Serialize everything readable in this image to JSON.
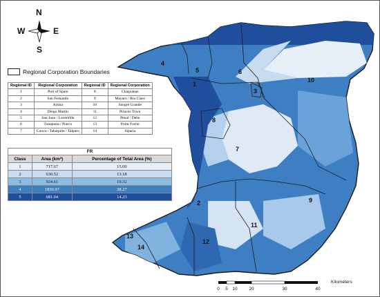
{
  "compass": {
    "north": "N",
    "south": "S",
    "east": "E",
    "west": "W"
  },
  "legend": {
    "boundary_label": "Regional Corporation Boundaries"
  },
  "regions_table": {
    "headers": [
      "Regional ID",
      "Regional Corporation",
      "Regional ID",
      "Regional Corporation"
    ],
    "rows": [
      {
        "id1": "1",
        "name1": "Port of Spain",
        "id2": "8",
        "name2": "Chaguanas"
      },
      {
        "id1": "2",
        "name1": "San Fernando",
        "id2": "9",
        "name2": "Mayaro / Rio Claro"
      },
      {
        "id1": "3",
        "name1": "Arima",
        "id2": "10",
        "name2": "Sangre Grande"
      },
      {
        "id1": "4",
        "name1": "Diego Martin",
        "id2": "11",
        "name2": "Princes Town"
      },
      {
        "id1": "5",
        "name1": "San Juan / Laventille",
        "id2": "12",
        "name2": "Penal / Debe"
      },
      {
        "id1": "6",
        "name1": "Tunapuna / Piarco",
        "id2": "13",
        "name2": "Point Fortin"
      },
      {
        "id1": "7",
        "name1": "Couva / Tabaquite / Talparo",
        "id2": "14",
        "name2": "Siparia"
      }
    ]
  },
  "fr_table": {
    "title": "FR",
    "headers": [
      "Class",
      "Area (km²)",
      "Percentage of Total Area (%)"
    ],
    "rows": [
      {
        "class": "1",
        "area": "717.67",
        "pct": "15.00",
        "color": "#e6eef8"
      },
      {
        "class": "2",
        "area": "630.52",
        "pct": "13.18",
        "color": "#c7dcef"
      },
      {
        "class": "3",
        "area": "924.61",
        "pct": "19.32",
        "color": "#8fbde2"
      },
      {
        "class": "4",
        "area": "1830.97",
        "pct": "38.27",
        "color": "#3e7fc4"
      },
      {
        "class": "5",
        "area": "681.04",
        "pct": "14.23",
        "color": "#1f4f9c"
      }
    ]
  },
  "region_labels": [
    "1",
    "2",
    "3",
    "4",
    "5",
    "6",
    "7",
    "8",
    "9",
    "10",
    "11",
    "12",
    "13",
    "14"
  ],
  "scale_bar": {
    "ticks": [
      "0",
      "5",
      "10",
      "20",
      "30",
      "40"
    ],
    "unit": "Kilometers"
  },
  "colors": {
    "outline": "#1a1a1a",
    "land_base": "#3e7fc4",
    "light": "#e6eef8"
  }
}
